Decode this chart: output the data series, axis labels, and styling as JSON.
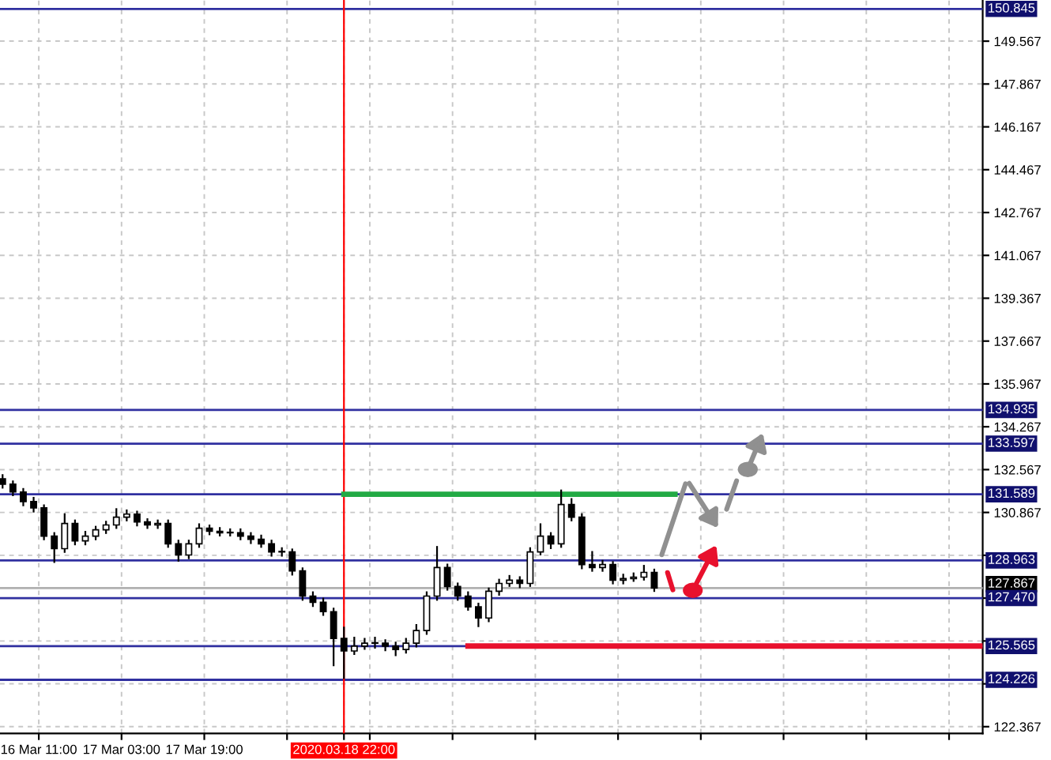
{
  "chart_data": {
    "type": "candlestick",
    "color": "#000000",
    "categories": [
      null,
      null,
      null,
      null,
      null,
      null,
      null,
      "16 Mar 11:00",
      null,
      null,
      null,
      null,
      null,
      null,
      null,
      null,
      null,
      null,
      null,
      null,
      null,
      null,
      null,
      "17 Mar 03:00",
      null,
      null,
      null,
      null,
      null,
      null,
      null,
      null,
      null,
      null,
      null,
      null,
      null,
      null,
      null,
      "17 Mar 19:00",
      null,
      null,
      null,
      null,
      null,
      null,
      null,
      null,
      null,
      null,
      null,
      null,
      null,
      null,
      null,
      null,
      null,
      null,
      null,
      null,
      null,
      null,
      null,
      null,
      null,
      null,
      "2020.03.18 22:00",
      null,
      null,
      null,
      null,
      null,
      null,
      null,
      null,
      null,
      null,
      null,
      null,
      null,
      null,
      null,
      null,
      null,
      null,
      null,
      null,
      null,
      null,
      null,
      null,
      null,
      null,
      null,
      null,
      null,
      null,
      null,
      null,
      null,
      null,
      null,
      null,
      null,
      null,
      null,
      null,
      null,
      null,
      null,
      null,
      null,
      null,
      null,
      null,
      null,
      null,
      null,
      null,
      null,
      null,
      null,
      null,
      null,
      null,
      null,
      null,
      null,
      null,
      null,
      null,
      null,
      null,
      null,
      null,
      null,
      null,
      null,
      null,
      null,
      null,
      null,
      null,
      null,
      null,
      null,
      null,
      null,
      null,
      null,
      null,
      null,
      null,
      null,
      null,
      null,
      null,
      null,
      null,
      null,
      null,
      null,
      null,
      null,
      null,
      null,
      null,
      null,
      null,
      null,
      null,
      null,
      null,
      null,
      null,
      null,
      null,
      null,
      null,
      null,
      null,
      null,
      null,
      null,
      null,
      null,
      null,
      null,
      null,
      null
    ],
    "ohlc": [
      [
        132.2,
        132.35,
        131.85,
        131.99
      ],
      null,
      [
        131.99,
        132.1,
        131.55,
        131.68
      ],
      null,
      [
        131.68,
        131.8,
        131.15,
        131.3
      ],
      null,
      [
        131.3,
        131.45,
        130.9,
        131.05
      ],
      null,
      [
        131.05,
        131.15,
        129.8,
        129.93
      ],
      null,
      [
        129.93,
        130.05,
        128.9,
        129.43
      ],
      null,
      [
        129.43,
        130.8,
        129.3,
        130.43
      ],
      null,
      [
        130.43,
        130.55,
        129.6,
        129.74
      ],
      null,
      [
        129.74,
        130.1,
        129.6,
        129.93
      ],
      null,
      [
        129.93,
        130.3,
        129.8,
        130.18
      ],
      null,
      [
        130.18,
        130.5,
        130.05,
        130.37
      ],
      null,
      [
        130.37,
        131.0,
        130.25,
        130.68
      ],
      null,
      [
        130.68,
        130.95,
        130.55,
        130.8
      ],
      null,
      [
        130.8,
        130.9,
        130.35,
        130.49
      ],
      null,
      [
        130.49,
        130.6,
        130.25,
        130.37
      ],
      null,
      [
        130.37,
        130.55,
        130.25,
        130.43
      ],
      null,
      [
        130.43,
        130.55,
        129.5,
        129.62
      ],
      null,
      [
        129.62,
        129.75,
        128.95,
        129.18
      ],
      null,
      [
        129.18,
        129.75,
        129.05,
        129.62
      ],
      null,
      [
        129.62,
        130.4,
        129.5,
        130.24
      ],
      null,
      [
        130.24,
        130.35,
        130.0,
        130.12
      ],
      null,
      [
        130.12,
        130.25,
        129.95,
        130.06
      ],
      null,
      [
        130.06,
        130.2,
        129.95,
        130.06
      ],
      null,
      [
        130.06,
        130.2,
        129.8,
        129.93
      ],
      null,
      [
        129.93,
        130.05,
        129.65,
        129.8
      ],
      null,
      [
        129.8,
        129.95,
        129.5,
        129.62
      ],
      null,
      [
        129.62,
        129.75,
        129.15,
        129.3
      ],
      null,
      [
        129.3,
        129.45,
        129.15,
        129.3
      ],
      null,
      [
        129.3,
        129.4,
        128.4,
        128.55
      ],
      null,
      [
        128.55,
        128.65,
        127.4,
        127.55
      ],
      null,
      [
        127.55,
        127.7,
        127.15,
        127.3
      ],
      null,
      [
        127.3,
        127.45,
        126.8,
        126.93
      ],
      null,
      [
        126.93,
        127.05,
        124.8,
        125.87
      ],
      null,
      [
        125.87,
        126.3,
        124.3,
        125.37
      ],
      null,
      [
        125.37,
        125.9,
        125.25,
        125.56
      ],
      null,
      [
        125.56,
        125.85,
        125.45,
        125.68
      ],
      null,
      [
        125.68,
        125.9,
        125.5,
        125.68
      ],
      null,
      [
        125.68,
        125.8,
        125.4,
        125.56
      ],
      null,
      [
        125.56,
        125.7,
        125.2,
        125.43
      ],
      null,
      [
        125.43,
        125.85,
        125.3,
        125.68
      ],
      null,
      [
        125.68,
        126.4,
        125.55,
        126.18
      ],
      null,
      [
        126.18,
        127.7,
        126.05,
        127.55
      ],
      null,
      [
        127.55,
        129.5,
        127.4,
        128.68
      ],
      null,
      [
        128.68,
        128.8,
        127.8,
        127.93
      ],
      null,
      [
        127.93,
        128.05,
        127.4,
        127.55
      ],
      null,
      [
        127.55,
        127.7,
        127.0,
        127.12
      ],
      null,
      [
        127.12,
        127.25,
        126.35,
        126.68
      ],
      null,
      [
        126.68,
        127.85,
        126.55,
        127.74
      ],
      null,
      [
        127.74,
        128.2,
        127.6,
        128.05
      ],
      null,
      [
        128.05,
        128.35,
        127.95,
        128.18
      ],
      null,
      [
        128.18,
        128.3,
        127.9,
        128.05
      ],
      null,
      [
        128.05,
        129.45,
        127.95,
        129.3
      ],
      null,
      [
        129.3,
        130.4,
        129.2,
        129.93
      ],
      null,
      [
        129.93,
        130.05,
        129.45,
        129.62
      ],
      null,
      [
        129.62,
        131.74,
        129.5,
        131.18
      ],
      null,
      [
        131.18,
        131.4,
        130.55,
        130.68
      ],
      null,
      [
        130.68,
        130.8,
        128.65,
        128.8
      ],
      null,
      [
        128.8,
        129.3,
        128.55,
        128.68
      ],
      null,
      [
        128.68,
        128.95,
        128.55,
        128.8
      ],
      null,
      [
        128.8,
        128.9,
        128.05,
        128.18
      ],
      null,
      [
        128.18,
        128.4,
        128.05,
        128.24
      ],
      null,
      [
        128.24,
        128.45,
        128.15,
        128.3
      ],
      null,
      [
        128.3,
        128.75,
        128.2,
        128.49
      ],
      null,
      [
        128.49,
        128.6,
        127.75,
        127.87
      ],
      null,
      null,
      null,
      null,
      null,
      null,
      null,
      null,
      null,
      null,
      null,
      null,
      null,
      null,
      null,
      null,
      null,
      null,
      null,
      null,
      null,
      null,
      null,
      null,
      null,
      null,
      null,
      null,
      null,
      null,
      null,
      null,
      null,
      null,
      null,
      null,
      null,
      null,
      null,
      null,
      null,
      null,
      null,
      null,
      null,
      null,
      null,
      null,
      null,
      null,
      null,
      null,
      null,
      null,
      null,
      null,
      null,
      null,
      null,
      null,
      null,
      null,
      null
    ],
    "series": [
      {
        "type": "line",
        "color": "#22aa44",
        "values": [
          null,
          null,
          null,
          null,
          null,
          null,
          null,
          null,
          null,
          null,
          null,
          null,
          null,
          null,
          null,
          null,
          null,
          null,
          null,
          null,
          null,
          null,
          null,
          null,
          null,
          null,
          null,
          null,
          null,
          null,
          null,
          null,
          null,
          null,
          null,
          null,
          null,
          null,
          null,
          null,
          null,
          null,
          null,
          null,
          null,
          null,
          null,
          null,
          null,
          null,
          null,
          null,
          null,
          null,
          null,
          null,
          null,
          null,
          null,
          null,
          null,
          null,
          null,
          null,
          null,
          null,
          131.589,
          131.589,
          131.589,
          131.589,
          131.589,
          131.589,
          131.589,
          131.589,
          131.589,
          131.589,
          131.589,
          131.589,
          131.589,
          131.589,
          131.589,
          131.589,
          131.589,
          131.589,
          131.589,
          131.589,
          131.589,
          131.589,
          131.589,
          131.589,
          131.589,
          131.589,
          131.589,
          131.589,
          131.589,
          131.589,
          131.589,
          131.589,
          131.589,
          131.589,
          131.589,
          131.589,
          131.589,
          131.589,
          131.589,
          131.589,
          131.589,
          131.589,
          131.589,
          131.589,
          131.589,
          131.589,
          131.589,
          131.589,
          131.589,
          131.589,
          131.589,
          131.589,
          131.589,
          131.589,
          131.589,
          131.589,
          131.589,
          131.589,
          131.589,
          131.589,
          131.589,
          131.589,
          131.589,
          131.589,
          131.589,
          null,
          null,
          null,
          null,
          null,
          null,
          null,
          null,
          null,
          null,
          null,
          null,
          null,
          null,
          null,
          null,
          null,
          null,
          null,
          null,
          null,
          null,
          null,
          null,
          null,
          null,
          null,
          null,
          null,
          null,
          null,
          null,
          null,
          null,
          null,
          null,
          null,
          null,
          null,
          null,
          null,
          null,
          null,
          null,
          null,
          null,
          null,
          null,
          null,
          null,
          null,
          null,
          null,
          null,
          null,
          null,
          null,
          null,
          null
        ]
      },
      {
        "type": "line",
        "color": "#e8112d",
        "values": [
          null,
          null,
          null,
          null,
          null,
          null,
          null,
          null,
          null,
          null,
          null,
          null,
          null,
          null,
          null,
          null,
          null,
          null,
          null,
          null,
          null,
          null,
          null,
          null,
          null,
          null,
          null,
          null,
          null,
          null,
          null,
          null,
          null,
          null,
          null,
          null,
          null,
          null,
          null,
          null,
          null,
          null,
          null,
          null,
          null,
          null,
          null,
          null,
          null,
          null,
          null,
          null,
          null,
          null,
          null,
          null,
          null,
          null,
          null,
          null,
          null,
          null,
          null,
          null,
          null,
          null,
          null,
          null,
          null,
          null,
          null,
          null,
          null,
          null,
          null,
          null,
          null,
          null,
          null,
          null,
          null,
          null,
          null,
          null,
          null,
          null,
          null,
          null,
          null,
          null,
          125.565,
          125.565,
          125.565,
          125.565,
          125.565,
          125.565,
          125.565,
          125.565,
          125.565,
          125.565,
          125.565,
          125.565,
          125.565,
          125.565,
          125.565,
          125.565,
          125.565,
          125.565,
          125.565,
          125.565,
          125.565,
          125.565,
          125.565,
          125.565,
          125.565,
          125.565,
          125.565,
          125.565,
          125.565,
          125.565,
          125.565,
          125.565,
          125.565,
          125.565,
          125.565,
          125.565,
          125.565,
          125.565,
          125.565,
          125.565,
          125.565,
          125.565,
          125.565,
          125.565,
          125.565,
          125.565,
          125.565,
          125.565,
          125.565,
          125.565,
          125.565,
          125.565,
          125.565,
          125.565,
          125.565,
          125.565,
          125.565,
          125.565,
          125.565,
          125.565,
          125.565,
          125.565,
          125.565,
          125.565,
          125.565,
          125.565,
          125.565,
          125.565,
          125.565,
          125.565,
          125.565,
          125.565,
          125.565,
          125.565,
          125.565,
          125.565,
          125.565,
          125.565,
          125.565,
          125.565,
          125.565,
          125.565,
          125.565,
          125.565,
          125.565,
          125.565,
          125.565,
          125.565,
          125.565,
          125.565,
          125.565,
          125.565,
          125.565,
          125.565,
          125.565,
          125.565,
          125.565,
          125.565,
          125.565,
          125.565
        ]
      }
    ],
    "ylim": [
      122.1,
      151.2
    ],
    "yticks": [
      122.367,
      {
        "value": 124.067,
        "label": null
      },
      {
        "value": 125.767,
        "label": null
      },
      {
        "value": 127.467,
        "label": null
      },
      {
        "value": 129.167,
        "label": null
      },
      130.867,
      132.567,
      134.267,
      135.967,
      137.667,
      139.367,
      141.067,
      142.767,
      144.467,
      146.167,
      147.867,
      149.567
    ],
    "ref_lines": [
      {
        "axis": "y",
        "value": 150.845,
        "label": "150.845",
        "color": "#3030a0"
      },
      {
        "axis": "y",
        "value": 134.935,
        "label": "134.935",
        "color": "#3030a0"
      },
      {
        "axis": "y",
        "value": 133.597,
        "label": "133.597",
        "color": "#3030a0"
      },
      {
        "axis": "y",
        "value": 131.589,
        "label": "131.589",
        "color": "#3030a0"
      },
      {
        "axis": "y",
        "value": 128.963,
        "label": "128.963",
        "color": "#3030a0"
      },
      {
        "axis": "y",
        "value": 127.867,
        "label": "127.867",
        "color": "#b0b0b0"
      },
      {
        "axis": "y",
        "value": 127.47,
        "label": "127.470",
        "color": "#3030a0"
      },
      {
        "axis": "y",
        "value": 125.565,
        "label": "125.565",
        "color": "#3030a0"
      },
      {
        "axis": "y",
        "value": 124.226,
        "label": "124.226",
        "color": "#3030a0"
      },
      {
        "axis": "x",
        "value": "2020.03.18 22:00",
        "color": "#ff0000"
      }
    ],
    "grid": true
  }
}
